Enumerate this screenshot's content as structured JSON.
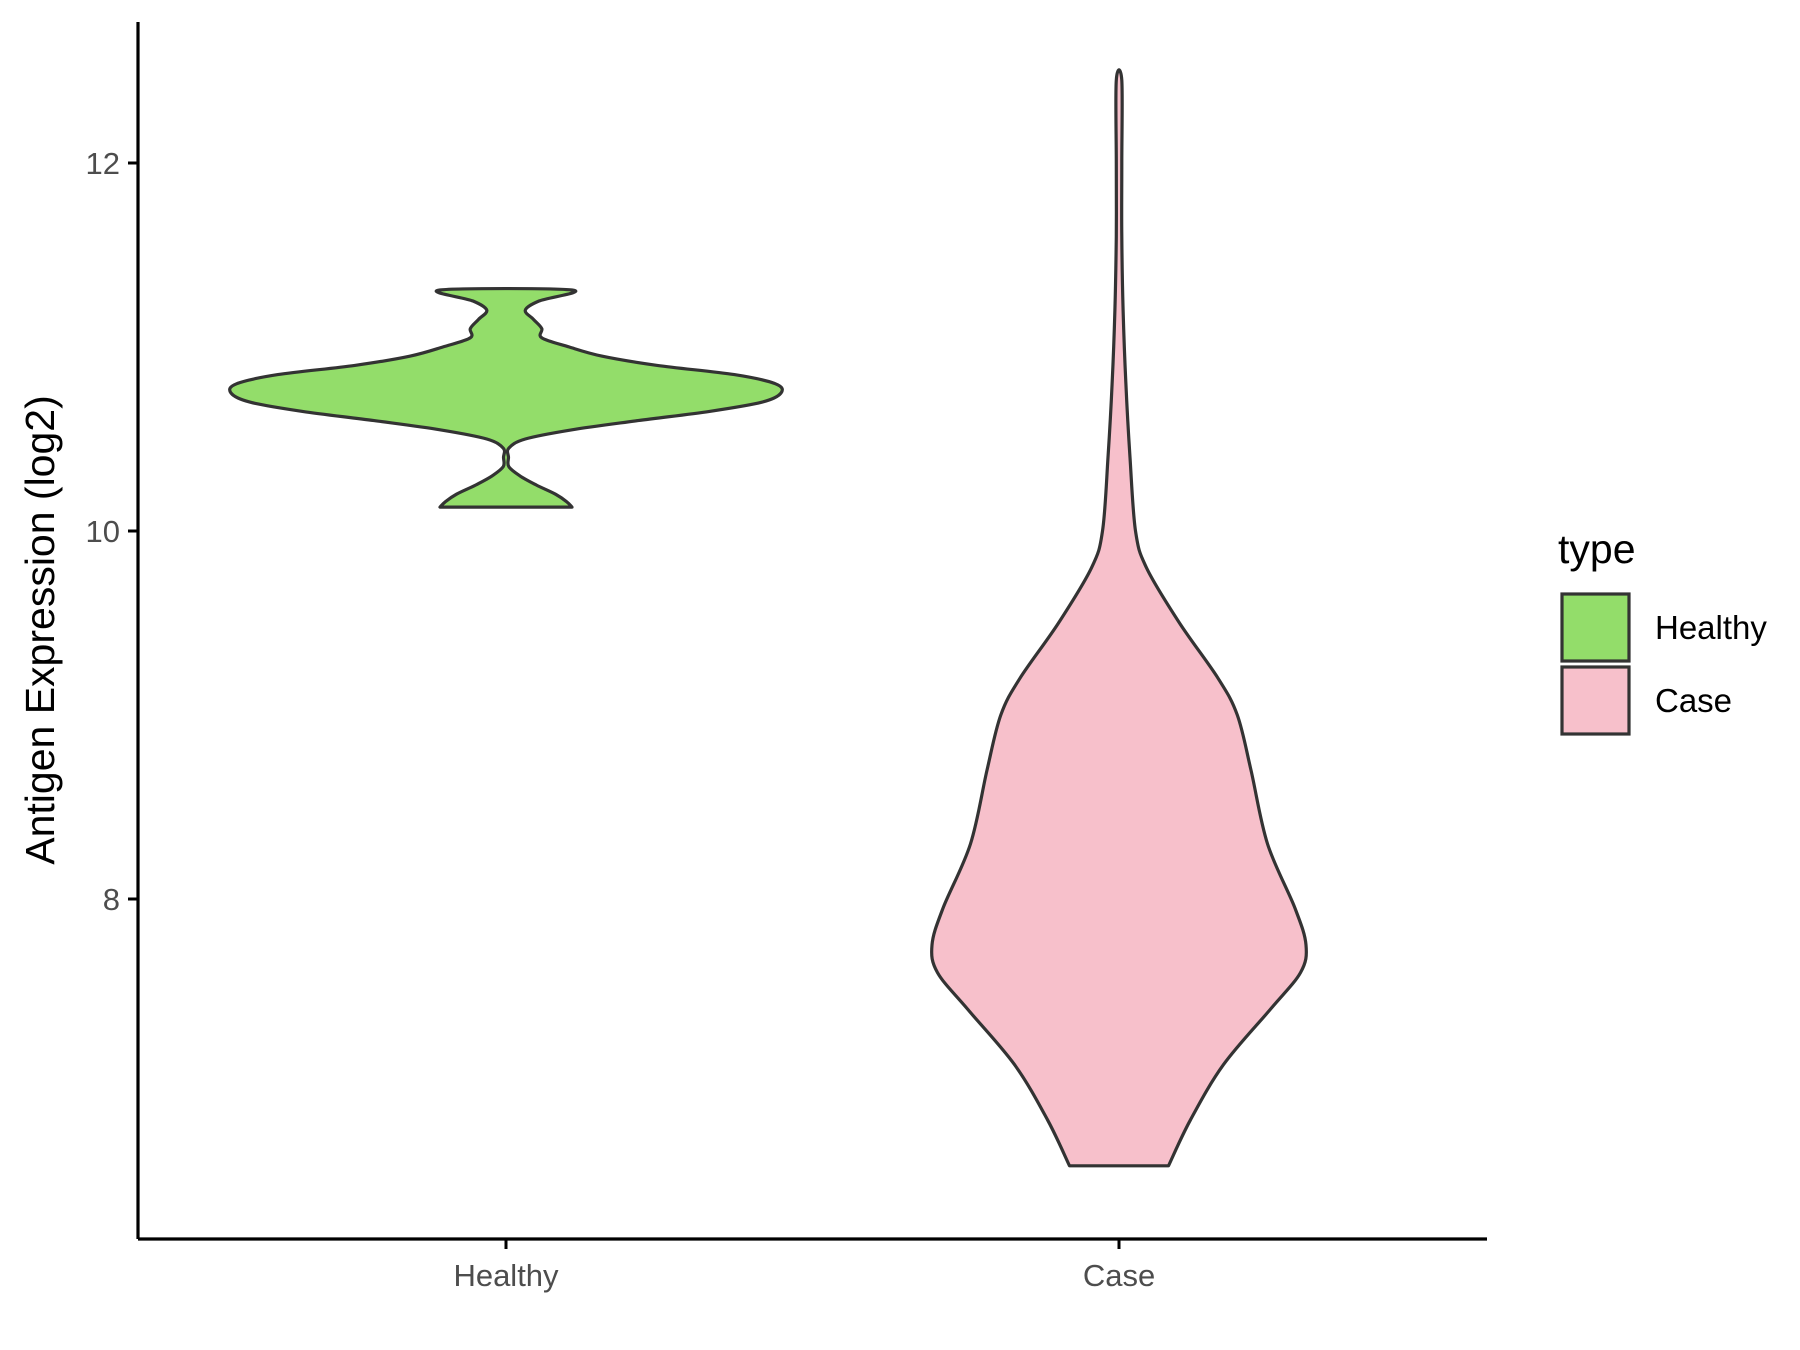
{
  "chart_data": {
    "type": "violin",
    "xlabel": "",
    "ylabel": "Antigen Expression (log2)",
    "categories": [
      "Healthy",
      "Case"
    ],
    "y_ticks": [
      8,
      10,
      12
    ],
    "ylim": [
      6.2,
      12.75
    ],
    "grid": false,
    "legend": {
      "title": "type",
      "position": "right",
      "entries": [
        {
          "label": "Healthy",
          "color": "#93dd6a"
        },
        {
          "label": "Case",
          "color": "#f7c0cb"
        }
      ]
    },
    "series": [
      {
        "name": "Healthy",
        "color": "#93dd6a",
        "min": 10.13,
        "max": 11.31,
        "density_profile": [
          [
            10.13,
            0.24
          ],
          [
            10.16,
            0.22
          ],
          [
            10.2,
            0.18
          ],
          [
            10.25,
            0.11
          ],
          [
            10.3,
            0.05
          ],
          [
            10.35,
            0.01
          ],
          [
            10.4,
            0.0
          ],
          [
            10.45,
            0.01
          ],
          [
            10.5,
            0.07
          ],
          [
            10.55,
            0.24
          ],
          [
            10.6,
            0.48
          ],
          [
            10.65,
            0.74
          ],
          [
            10.7,
            0.93
          ],
          [
            10.75,
            1.0
          ],
          [
            10.8,
            0.98
          ],
          [
            10.85,
            0.83
          ],
          [
            10.9,
            0.55
          ],
          [
            10.95,
            0.35
          ],
          [
            11.0,
            0.23
          ],
          [
            11.05,
            0.13
          ],
          [
            11.1,
            0.13
          ],
          [
            11.15,
            0.1
          ],
          [
            11.2,
            0.07
          ],
          [
            11.25,
            0.12
          ],
          [
            11.31,
            0.24
          ]
        ]
      },
      {
        "name": "Case",
        "color": "#f7c0cb",
        "min": 6.55,
        "max": 12.45,
        "density_profile": [
          [
            6.55,
            0.18
          ],
          [
            6.8,
            0.26
          ],
          [
            7.1,
            0.38
          ],
          [
            7.4,
            0.55
          ],
          [
            7.6,
            0.66
          ],
          [
            7.75,
            0.68
          ],
          [
            7.95,
            0.64
          ],
          [
            8.3,
            0.54
          ],
          [
            8.7,
            0.48
          ],
          [
            9.0,
            0.43
          ],
          [
            9.2,
            0.36
          ],
          [
            9.5,
            0.22
          ],
          [
            9.8,
            0.1
          ],
          [
            10.0,
            0.06
          ],
          [
            10.4,
            0.04
          ],
          [
            10.8,
            0.025
          ],
          [
            11.2,
            0.015
          ],
          [
            11.6,
            0.01
          ],
          [
            12.0,
            0.01
          ],
          [
            12.45,
            0.01
          ]
        ]
      }
    ]
  }
}
